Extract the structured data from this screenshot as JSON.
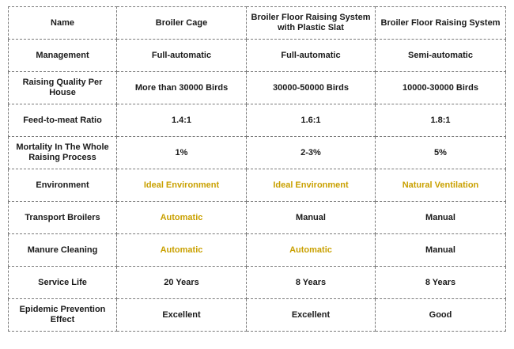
{
  "table": {
    "header": [
      "Name",
      "Broiler Cage",
      "Broiler Floor Raising System with Plastic Slat",
      "Broiler Floor Raising System"
    ],
    "rows": [
      {
        "label": "Management",
        "cells": [
          "Full-automatic",
          "Full-automatic",
          "Semi-automatic"
        ]
      },
      {
        "label": "Raising Quality Per House",
        "cells": [
          "More than 30000 Birds",
          "30000-50000 Birds",
          "10000-30000 Birds"
        ]
      },
      {
        "label": "Feed-to-meat Ratio",
        "cells": [
          "1.4:1",
          "1.6:1",
          "1.8:1"
        ]
      },
      {
        "label": "Mortality In The Whole Raising Process",
        "cells": [
          "1%",
          "2-3%",
          "5%"
        ]
      },
      {
        "label": "Environment",
        "cells": [
          "Ideal Environment",
          "Ideal Environment",
          "Natural Ventilation"
        ]
      },
      {
        "label": "Transport Broilers",
        "cells": [
          "Automatic",
          "Manual",
          "Manual"
        ]
      },
      {
        "label": "Manure Cleaning",
        "cells": [
          "Automatic",
          "Automatic",
          "Manual"
        ]
      },
      {
        "label": "Service Life",
        "cells": [
          "20 Years",
          "8 Years",
          "8 Years"
        ]
      },
      {
        "label": "Epidemic Prevention Effect",
        "cells": [
          "Excellent",
          "Excellent",
          "Good"
        ]
      }
    ]
  },
  "colors": {
    "highlight_text": "#c9a000",
    "normal_text": "#1a1a1a",
    "border": "#7a7a7a"
  }
}
